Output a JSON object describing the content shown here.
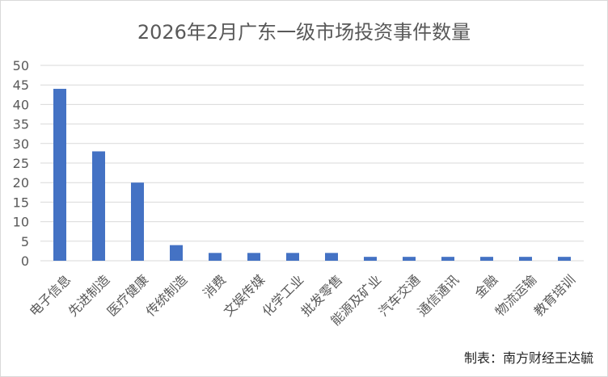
{
  "chart_data": {
    "type": "bar",
    "title": "2026年2月广东一级市场投资事件数量",
    "categories": [
      "电子信息",
      "先进制造",
      "医疗健康",
      "传统制造",
      "消费",
      "文娱传媒",
      "化学工业",
      "批发零售",
      "能源及矿业",
      "汽车交通",
      "通信通讯",
      "金融",
      "物流运输",
      "教育培训"
    ],
    "values": [
      44,
      28,
      20,
      4,
      2,
      2,
      2,
      2,
      1,
      1,
      1,
      1,
      1,
      1
    ],
    "xlabel": "",
    "ylabel": "",
    "ylim": [
      0,
      50
    ],
    "yticks": [
      0,
      5,
      10,
      15,
      20,
      25,
      30,
      35,
      40,
      45,
      50
    ],
    "grid": true,
    "bar_color": "#4472c4",
    "grid_color": "#d9d9d9"
  },
  "footer": {
    "credit": "制表：南方财经王达毓"
  }
}
